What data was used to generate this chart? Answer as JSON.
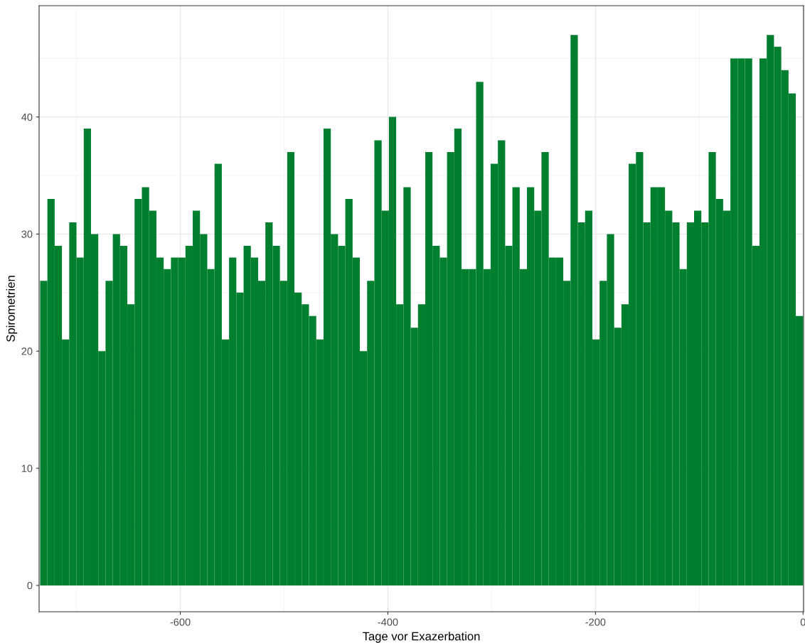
{
  "chart_data": {
    "type": "histogram",
    "xlabel": "Tage vor Exazerbation",
    "ylabel": "Spirometrien",
    "color": "#007f2e",
    "bins": [
      -735,
      -728,
      -721,
      -714,
      -707,
      -700,
      -693,
      -686,
      -679,
      -672,
      -665,
      -658,
      -651,
      -644,
      -637,
      -630,
      -623,
      -616,
      -609,
      -602,
      -595,
      -588,
      -581,
      -574,
      -567,
      -560,
      -553,
      -546,
      -539,
      -532,
      -525,
      -518,
      -511,
      -504,
      -497,
      -490,
      -483,
      -476,
      -469,
      -462,
      -455,
      -448,
      -441,
      -434,
      -427,
      -420,
      -413,
      -406,
      -399,
      -392,
      -385,
      -378,
      -371,
      -364,
      -357,
      -350,
      -343,
      -336,
      -329,
      -322,
      -315,
      -308,
      -301,
      -294,
      -287,
      -280,
      -273,
      -266,
      -259,
      -252,
      -245,
      -238,
      -231,
      -224,
      -217,
      -210,
      -203,
      -196,
      -189,
      -182,
      -175,
      -168,
      -161,
      -154,
      -147,
      -140,
      -133,
      -126,
      -119,
      -112,
      -105,
      -98,
      -91,
      -84,
      -77,
      -70,
      -63,
      -56,
      -49,
      -42,
      -35,
      -28,
      -21,
      -14,
      -7,
      0
    ],
    "values": [
      26,
      33,
      29,
      21,
      31,
      28,
      39,
      30,
      20,
      26,
      30,
      29,
      24,
      33,
      34,
      32,
      28,
      27,
      28,
      28,
      29,
      32,
      30,
      27,
      36,
      21,
      28,
      25,
      29,
      28,
      26,
      31,
      29,
      26,
      37,
      25,
      24,
      23,
      21,
      39,
      30,
      29,
      33,
      28,
      20,
      26,
      38,
      32,
      40,
      24,
      34,
      22,
      24,
      37,
      29,
      28,
      37,
      39,
      27,
      27,
      43,
      27,
      36,
      38,
      29,
      34,
      27,
      34,
      32,
      37,
      28,
      28,
      26,
      47,
      31,
      32,
      21,
      26,
      30,
      22,
      24,
      36,
      37,
      31,
      34,
      34,
      32,
      31,
      27,
      31,
      32,
      31,
      37,
      33,
      32,
      45,
      45,
      45,
      29,
      45,
      47,
      46,
      44,
      42,
      23
    ],
    "xlim": [
      -736,
      0.5
    ],
    "xticks": [
      -600,
      -400,
      -200,
      0
    ],
    "ylim": [
      -2.25,
      49.5
    ],
    "yticks": [
      0,
      10,
      20,
      30,
      40
    ],
    "grid": true
  }
}
